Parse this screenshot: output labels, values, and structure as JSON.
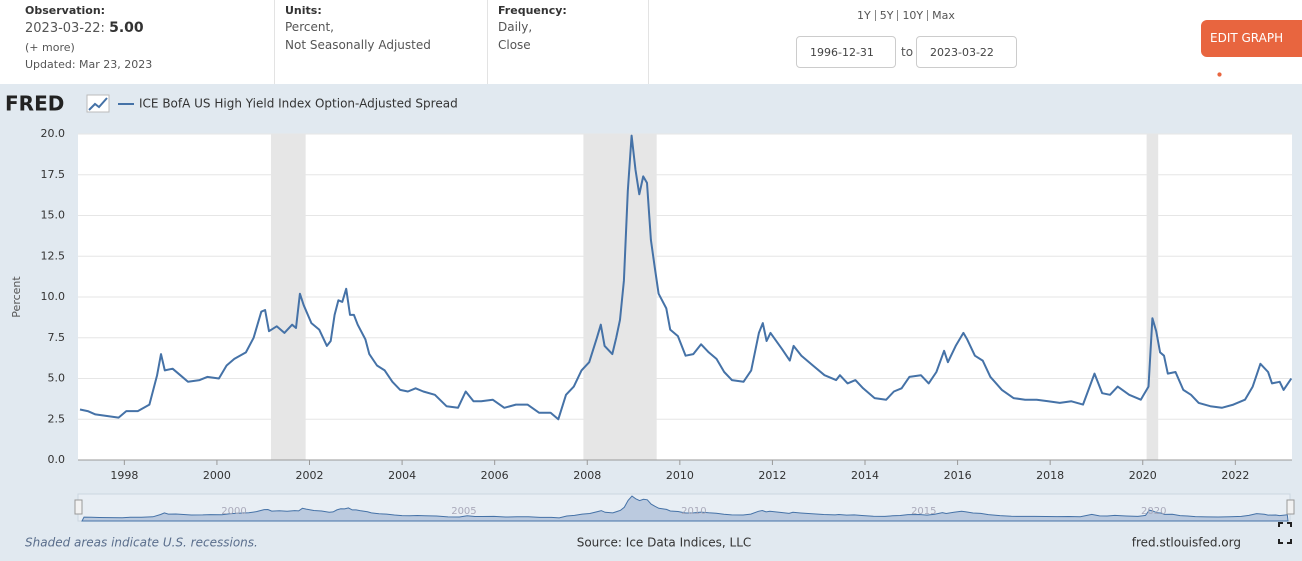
{
  "header": {
    "observation_label": "Observation:",
    "observation_date": "2023-03-22:",
    "observation_value": "5.00",
    "more": "(+ more)",
    "updated": "Updated: Mar 23, 2023",
    "units_label": "Units:",
    "units": [
      "Percent,",
      "Not Seasonally Adjusted"
    ],
    "frequency_label": "Frequency:",
    "frequency": [
      "Daily,",
      "Close"
    ],
    "ranges": [
      "1Y",
      "5Y",
      "10Y",
      "Max"
    ],
    "start_date": "1996-12-31",
    "to": "to",
    "end_date": "2023-03-22",
    "edit_button": "EDIT GRAPH"
  },
  "logo": "FRED",
  "chart_data": {
    "type": "line",
    "y_label": "Percent",
    "grid": true,
    "xlim": [
      "1996-12-31",
      "2023-03-22"
    ],
    "xticks": [
      1998,
      2000,
      2002,
      2004,
      2006,
      2008,
      2010,
      2012,
      2014,
      2016,
      2018,
      2020,
      2022
    ],
    "ylim": [
      0,
      20
    ],
    "yticks": [
      {
        "value": 0,
        "label": "0.0"
      },
      {
        "value": 2.5,
        "label": "2.5"
      },
      {
        "value": 5,
        "label": "5.0"
      },
      {
        "value": 7.5,
        "label": "7.5"
      },
      {
        "value": 10,
        "label": "10.0"
      },
      {
        "value": 12.5,
        "label": "12.5"
      },
      {
        "value": 15,
        "label": "15.0"
      },
      {
        "value": 17.5,
        "label": "17.5"
      },
      {
        "value": 20,
        "label": "20.0"
      }
    ],
    "shaded_periods": [
      {
        "start": "2001-03",
        "end": "2001-11"
      },
      {
        "start": "2007-12",
        "end": "2009-06"
      },
      {
        "start": "2020-02",
        "end": "2020-04"
      }
    ],
    "shade_color": "#e6e6e6",
    "x": [
      "1997-01",
      "1997-03",
      "1997-05",
      "1997-08",
      "1997-11",
      "1998-01",
      "1998-04",
      "1998-07",
      "1998-09",
      "1998-10",
      "1998-11",
      "1999-01",
      "1999-03",
      "1999-05",
      "1999-08",
      "1999-10",
      "2000-01",
      "2000-03",
      "2000-05",
      "2000-08",
      "2000-10",
      "2000-12",
      "2001-01",
      "2001-02",
      "2001-04",
      "2001-06",
      "2001-08",
      "2001-09",
      "2001-10",
      "2001-11",
      "2002-01",
      "2002-03",
      "2002-05",
      "2002-06",
      "2002-07",
      "2002-08",
      "2002-09",
      "2002-10",
      "2002-11",
      "2002-12",
      "2003-01",
      "2003-03",
      "2003-04",
      "2003-06",
      "2003-08",
      "2003-10",
      "2003-12",
      "2004-02",
      "2004-04",
      "2004-06",
      "2004-09",
      "2004-12",
      "2005-03",
      "2005-05",
      "2005-07",
      "2005-09",
      "2005-12",
      "2006-03",
      "2006-06",
      "2006-09",
      "2006-12",
      "2007-03",
      "2007-05",
      "2007-07",
      "2007-09",
      "2007-11",
      "2008-01",
      "2008-03",
      "2008-04",
      "2008-05",
      "2008-07",
      "2008-08",
      "2008-09",
      "2008-10",
      "2008-11",
      "2008-12",
      "2009-01",
      "2009-02",
      "2009-03",
      "2009-04",
      "2009-05",
      "2009-06",
      "2009-07",
      "2009-09",
      "2009-10",
      "2009-12",
      "2010-02",
      "2010-04",
      "2010-06",
      "2010-08",
      "2010-10",
      "2010-12",
      "2011-02",
      "2011-05",
      "2011-07",
      "2011-09",
      "2011-10",
      "2011-11",
      "2011-12",
      "2012-03",
      "2012-05",
      "2012-06",
      "2012-08",
      "2012-11",
      "2013-02",
      "2013-05",
      "2013-06",
      "2013-08",
      "2013-10",
      "2013-12",
      "2014-03",
      "2014-06",
      "2014-08",
      "2014-10",
      "2014-12",
      "2015-03",
      "2015-05",
      "2015-07",
      "2015-09",
      "2015-10",
      "2015-12",
      "2016-02",
      "2016-03",
      "2016-05",
      "2016-07",
      "2016-09",
      "2016-12",
      "2017-03",
      "2017-06",
      "2017-09",
      "2017-12",
      "2018-03",
      "2018-06",
      "2018-09",
      "2018-12",
      "2019-02",
      "2019-04",
      "2019-06",
      "2019-09",
      "2019-12",
      "2020-02",
      "2020-03",
      "2020-04",
      "2020-05",
      "2020-06",
      "2020-07",
      "2020-09",
      "2020-11",
      "2021-01",
      "2021-03",
      "2021-06",
      "2021-09",
      "2021-12",
      "2022-03",
      "2022-05",
      "2022-07",
      "2022-09",
      "2022-10",
      "2022-12",
      "2023-01",
      "2023-03"
    ],
    "series": [
      {
        "name": "ICE BofA US High Yield Index Option-Adjusted Spread",
        "color": "#4572a7",
        "values": [
          3.1,
          3.0,
          2.8,
          2.7,
          2.6,
          3.0,
          3.0,
          3.4,
          5.2,
          6.5,
          5.5,
          5.6,
          5.2,
          4.8,
          4.9,
          5.1,
          5.0,
          5.8,
          6.2,
          6.6,
          7.5,
          9.1,
          9.2,
          7.9,
          8.2,
          7.8,
          8.3,
          8.1,
          10.2,
          9.5,
          8.4,
          8.0,
          7.0,
          7.3,
          8.9,
          9.8,
          9.7,
          10.5,
          8.9,
          8.9,
          8.3,
          7.4,
          6.5,
          5.8,
          5.5,
          4.8,
          4.3,
          4.2,
          4.4,
          4.2,
          4.0,
          3.3,
          3.2,
          4.2,
          3.6,
          3.6,
          3.7,
          3.2,
          3.4,
          3.4,
          2.9,
          2.9,
          2.5,
          4.0,
          4.5,
          5.5,
          6.0,
          7.5,
          8.3,
          7.0,
          6.5,
          7.5,
          8.6,
          11.0,
          16.5,
          19.9,
          17.8,
          16.3,
          17.4,
          17.0,
          13.5,
          11.8,
          10.2,
          9.3,
          8.0,
          7.6,
          6.4,
          6.5,
          7.1,
          6.6,
          6.2,
          5.4,
          4.9,
          4.8,
          5.5,
          7.8,
          8.4,
          7.3,
          7.8,
          6.8,
          6.1,
          7.0,
          6.4,
          5.8,
          5.2,
          4.9,
          5.2,
          4.7,
          4.9,
          4.4,
          3.8,
          3.7,
          4.2,
          4.4,
          5.1,
          5.2,
          4.7,
          5.4,
          6.7,
          6.0,
          7.0,
          7.8,
          7.4,
          6.4,
          6.1,
          5.1,
          4.3,
          3.8,
          3.7,
          3.7,
          3.6,
          3.5,
          3.6,
          3.4,
          5.3,
          4.1,
          4.0,
          4.5,
          4.0,
          3.7,
          4.5,
          8.7,
          7.9,
          6.6,
          6.4,
          5.3,
          5.4,
          4.3,
          4.0,
          3.5,
          3.3,
          3.2,
          3.4,
          3.7,
          4.5,
          5.9,
          5.4,
          4.7,
          4.8,
          4.3,
          5.0
        ]
      }
    ],
    "navigator_xticks": [
      2000,
      2005,
      2010,
      2015,
      2020
    ]
  },
  "footer": {
    "note": "Shaded areas indicate U.S. recessions.",
    "source": "Source: Ice Data Indices, LLC",
    "site": "fred.stlouisfed.org"
  }
}
